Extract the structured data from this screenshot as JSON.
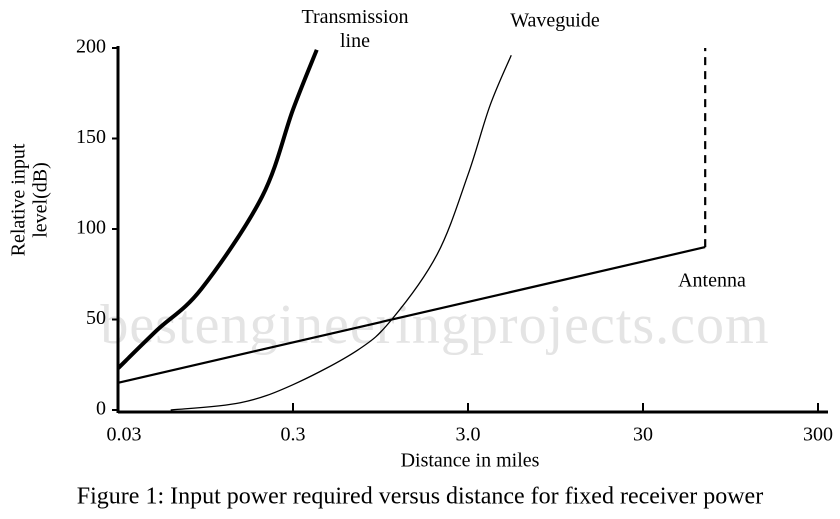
{
  "chart_data": {
    "type": "line",
    "watermark": "bestengineeringprojects.com",
    "xlabel": "Distance in miles",
    "ylabel": [
      "Relative input",
      "level(dB)"
    ],
    "caption": "Figure 1: Input power required versus distance for fixed receiver power",
    "xscale": "log",
    "xlim": [
      0.03,
      300
    ],
    "xticks": [
      0.03,
      0.3,
      {
        "value": 3,
        "label": "3.0"
      },
      30,
      300
    ],
    "ylim": [
      0,
      200
    ],
    "yticks": [
      0,
      50,
      100,
      150,
      200
    ],
    "grid": false,
    "series": [
      {
        "name": "Transmission line",
        "color": "#000000",
        "width": 4,
        "x": [
          0.03,
          0.05,
          0.09,
          0.2,
          0.3,
          0.41
        ],
        "values": [
          23,
          44,
          67,
          118,
          166,
          199
        ]
      },
      {
        "name": "Waveguide",
        "color": "#000000",
        "width": 1.3,
        "x": [
          0.06,
          0.15,
          0.3,
          0.7,
          1.1,
          2,
          3,
          4,
          5.3
        ],
        "values": [
          0,
          4,
          14,
          33,
          50,
          86,
          130,
          168,
          196
        ]
      },
      {
        "name": "Antenna",
        "color": "#000000",
        "width": 2.2,
        "x": [
          0.03,
          68,
          68
        ],
        "values": [
          15,
          90,
          200
        ],
        "line_styles": [
          "solid",
          "dashed"
        ]
      }
    ]
  }
}
